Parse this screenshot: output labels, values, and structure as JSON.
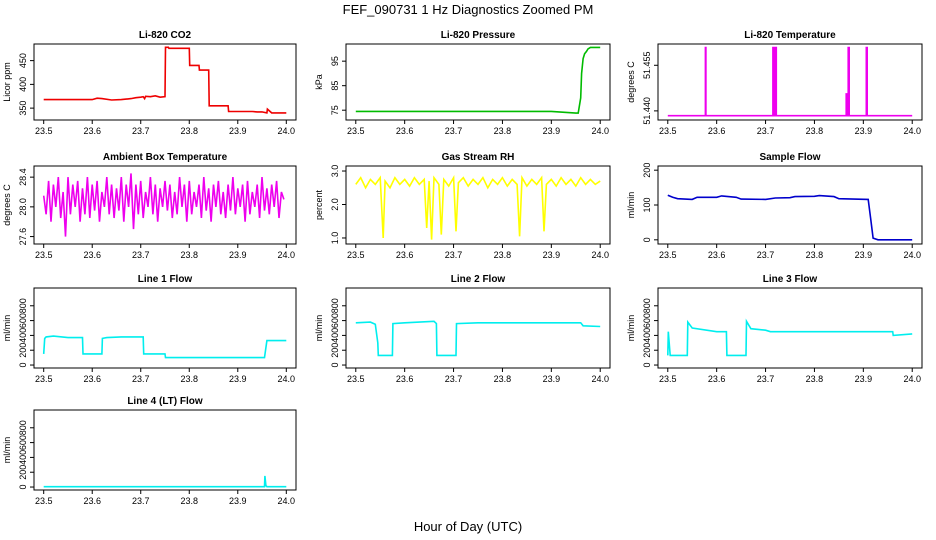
{
  "figure": {
    "title": "FEF_090731  1 Hz Diagnostics Zoomed PM",
    "xlabel": "Hour of Day (UTC)"
  },
  "chart_data": [
    {
      "id": "co2",
      "type": "line",
      "title": "Li-820 CO2",
      "ylabel": "Licor ppm",
      "color": "#ee0000",
      "xlim": [
        23.48,
        24.02
      ],
      "ylim": [
        325,
        485
      ],
      "xticks": [
        "23.5",
        "23.6",
        "23.7",
        "23.8",
        "23.9",
        "24.0"
      ],
      "yticks": [
        "350",
        "400",
        "450"
      ],
      "x": [
        23.5,
        23.55,
        23.6,
        23.61,
        23.62,
        23.64,
        23.66,
        23.67,
        23.68,
        23.69,
        23.7,
        23.705,
        23.708,
        23.71,
        23.72,
        23.73,
        23.74,
        23.75,
        23.751,
        23.757,
        23.758,
        23.8,
        23.801,
        23.82,
        23.821,
        23.84,
        23.841,
        23.88,
        23.881,
        23.93,
        23.94,
        23.95,
        23.96,
        23.961,
        23.97,
        24.0
      ],
      "y": [
        368,
        368,
        368,
        371,
        370,
        367,
        368,
        369,
        370,
        372,
        373,
        374,
        370,
        375,
        374,
        376,
        373,
        374,
        478,
        478,
        476,
        476,
        440,
        440,
        430,
        430,
        355,
        355,
        343,
        343,
        342,
        342,
        340,
        348,
        340,
        340
      ]
    },
    {
      "id": "pressure",
      "type": "line",
      "title": "Li-820 Pressure",
      "ylabel": "kPa",
      "color": "#00bb00",
      "xlim": [
        23.48,
        24.02
      ],
      "ylim": [
        71,
        102
      ],
      "xticks": [
        "23.5",
        "23.6",
        "23.7",
        "23.8",
        "23.9",
        "24.0"
      ],
      "yticks": [
        "75",
        "85",
        "95"
      ],
      "x": [
        23.5,
        23.9,
        23.95,
        23.955,
        23.96,
        23.962,
        23.965,
        23.968,
        23.972,
        23.975,
        23.98,
        24.0
      ],
      "y": [
        74.5,
        74.5,
        73.8,
        73.8,
        80,
        90,
        96,
        98,
        99,
        100,
        100.6,
        100.6
      ]
    },
    {
      "id": "temperature",
      "type": "line",
      "title": "Li-820 Temperature",
      "ylabel": "degrees C",
      "color": "#ee00ee",
      "xlim": [
        23.48,
        24.02
      ],
      "ylim": [
        51.437,
        51.462
      ],
      "xticks": [
        "23.5",
        "23.6",
        "23.7",
        "23.8",
        "23.9",
        "24.0"
      ],
      "yticks": [
        "51.440",
        "51.455"
      ],
      "x": [
        23.5,
        23.577,
        23.577,
        23.578,
        23.578,
        23.715,
        23.715,
        23.717,
        23.717,
        23.72,
        23.72,
        23.722,
        23.722,
        23.865,
        23.865,
        23.867,
        23.867,
        23.869,
        23.869,
        23.871,
        23.871,
        23.906,
        23.906,
        23.908,
        23.908,
        24.0
      ],
      "y": [
        51.4384,
        51.4384,
        51.4608,
        51.4608,
        51.4384,
        51.4384,
        51.4608,
        51.4608,
        51.4384,
        51.4384,
        51.4608,
        51.4608,
        51.4384,
        51.4384,
        51.4456,
        51.4456,
        51.4384,
        51.4384,
        51.4608,
        51.4608,
        51.4384,
        51.4384,
        51.4608,
        51.4608,
        51.4384,
        51.4384
      ]
    },
    {
      "id": "ambient",
      "type": "line",
      "title": "Ambient Box Temperature",
      "ylabel": "degrees C",
      "color": "#ee00ee",
      "xlim": [
        23.48,
        24.02
      ],
      "ylim": [
        27.5,
        28.55
      ],
      "xticks": [
        "23.5",
        "23.6",
        "23.7",
        "23.8",
        "23.9",
        "24.0"
      ],
      "yticks": [
        "27.6",
        "28.0",
        "28.4"
      ],
      "x": [
        23.5,
        23.505,
        23.51,
        23.515,
        23.52,
        23.525,
        23.53,
        23.535,
        23.54,
        23.545,
        23.55,
        23.555,
        23.56,
        23.565,
        23.57,
        23.575,
        23.58,
        23.585,
        23.59,
        23.595,
        23.6,
        23.605,
        23.61,
        23.615,
        23.62,
        23.625,
        23.63,
        23.635,
        23.64,
        23.645,
        23.65,
        23.655,
        23.66,
        23.665,
        23.67,
        23.675,
        23.68,
        23.685,
        23.69,
        23.695,
        23.7,
        23.705,
        23.71,
        23.715,
        23.72,
        23.725,
        23.73,
        23.735,
        23.74,
        23.745,
        23.75,
        23.755,
        23.76,
        23.765,
        23.77,
        23.775,
        23.78,
        23.785,
        23.79,
        23.795,
        23.8,
        23.805,
        23.81,
        23.815,
        23.82,
        23.825,
        23.83,
        23.835,
        23.84,
        23.845,
        23.85,
        23.855,
        23.86,
        23.865,
        23.87,
        23.875,
        23.88,
        23.885,
        23.89,
        23.895,
        23.9,
        23.905,
        23.91,
        23.915,
        23.92,
        23.925,
        23.93,
        23.935,
        23.94,
        23.945,
        23.95,
        23.955,
        23.96,
        23.965,
        23.97,
        23.975,
        23.98,
        23.985,
        23.99,
        23.995
      ],
      "y": [
        28.15,
        27.9,
        28.35,
        27.8,
        28.3,
        28.0,
        28.4,
        27.85,
        28.2,
        27.6,
        28.4,
        27.9,
        28.3,
        28.0,
        28.35,
        27.8,
        28.25,
        27.9,
        28.4,
        27.85,
        28.3,
        27.95,
        28.35,
        27.8,
        28.2,
        28.0,
        28.4,
        27.9,
        28.3,
        27.85,
        28.25,
        27.95,
        28.4,
        27.8,
        28.3,
        28.0,
        28.45,
        27.7,
        28.3,
        27.9,
        28.35,
        27.85,
        28.2,
        28.0,
        28.4,
        27.9,
        28.3,
        27.8,
        28.25,
        28.0,
        28.35,
        27.95,
        28.3,
        27.85,
        28.2,
        27.9,
        28.4,
        28.0,
        28.3,
        27.8,
        28.35,
        27.9,
        28.2,
        28.0,
        28.3,
        27.85,
        28.4,
        27.95,
        28.25,
        27.8,
        28.3,
        28.0,
        28.35,
        27.9,
        28.2,
        27.85,
        28.3,
        27.95,
        28.4,
        27.9,
        28.25,
        28.0,
        28.3,
        27.8,
        28.35,
        27.9,
        28.2,
        28.0,
        28.3,
        27.85,
        28.4,
        27.95,
        28.25,
        27.9,
        28.3,
        28.0,
        28.35,
        27.85,
        28.2,
        28.1
      ]
    },
    {
      "id": "rh",
      "type": "line",
      "title": "Gas Stream RH",
      "ylabel": "percent",
      "color": "#ffff00",
      "xlim": [
        23.48,
        24.02
      ],
      "ylim": [
        0.82,
        3.15
      ],
      "xticks": [
        "23.5",
        "23.6",
        "23.7",
        "23.8",
        "23.9",
        "24.0"
      ],
      "yticks": [
        "1.0",
        "2.0",
        "3.0"
      ],
      "x": [
        23.5,
        23.51,
        23.52,
        23.53,
        23.54,
        23.55,
        23.556,
        23.56,
        23.57,
        23.58,
        23.59,
        23.6,
        23.61,
        23.62,
        23.63,
        23.64,
        23.645,
        23.65,
        23.655,
        23.66,
        23.67,
        23.675,
        23.68,
        23.69,
        23.7,
        23.705,
        23.71,
        23.72,
        23.73,
        23.74,
        23.75,
        23.76,
        23.77,
        23.78,
        23.79,
        23.8,
        23.81,
        23.82,
        23.83,
        23.835,
        23.84,
        23.85,
        23.86,
        23.87,
        23.88,
        23.885,
        23.89,
        23.9,
        23.91,
        23.92,
        23.93,
        23.94,
        23.95,
        23.96,
        23.97,
        23.98,
        23.99,
        24.0
      ],
      "y": [
        2.6,
        2.8,
        2.5,
        2.75,
        2.6,
        2.8,
        1.0,
        2.7,
        2.5,
        2.8,
        2.6,
        2.75,
        2.55,
        2.8,
        2.6,
        2.75,
        1.3,
        2.7,
        0.95,
        2.8,
        2.6,
        1.1,
        2.75,
        2.55,
        2.8,
        1.2,
        2.65,
        2.8,
        2.55,
        2.75,
        2.6,
        2.8,
        2.5,
        2.75,
        2.6,
        2.8,
        2.55,
        2.75,
        2.6,
        1.05,
        2.8,
        2.55,
        2.75,
        2.6,
        2.8,
        1.2,
        2.6,
        2.75,
        2.55,
        2.8,
        2.6,
        2.75,
        2.55,
        2.8,
        2.6,
        2.75,
        2.6,
        2.7
      ]
    },
    {
      "id": "sample",
      "type": "line",
      "title": "Sample Flow",
      "ylabel": "ml/min",
      "color": "#0000cc",
      "xlim": [
        23.48,
        24.02
      ],
      "ylim": [
        -12,
        212
      ],
      "xticks": [
        "23.5",
        "23.6",
        "23.7",
        "23.8",
        "23.9",
        "24.0"
      ],
      "yticks": [
        "0",
        "100",
        "200"
      ],
      "x": [
        23.5,
        23.51,
        23.52,
        23.55,
        23.56,
        23.6,
        23.61,
        23.64,
        23.65,
        23.7,
        23.72,
        23.75,
        23.76,
        23.8,
        23.81,
        23.84,
        23.85,
        23.91,
        23.915,
        23.92,
        23.93,
        24.0
      ],
      "y": [
        128,
        122,
        118,
        116,
        122,
        122,
        126,
        122,
        117,
        116,
        120,
        121,
        124,
        125,
        127,
        124,
        118,
        116,
        60,
        5,
        0,
        0
      ]
    },
    {
      "id": "line1",
      "type": "line",
      "title": "Line 1 Flow",
      "ylabel": "ml/min",
      "color": "#00eeee",
      "xlim": [
        23.48,
        24.02
      ],
      "ylim": [
        -40,
        1040
      ],
      "xticks": [
        "23.5",
        "23.6",
        "23.7",
        "23.8",
        "23.9",
        "24.0"
      ],
      "yticks": [
        "0",
        "200",
        "400",
        "600",
        "800"
      ],
      "x": [
        23.5,
        23.502,
        23.505,
        23.52,
        23.55,
        23.58,
        23.581,
        23.62,
        23.621,
        23.63,
        23.66,
        23.705,
        23.706,
        23.75,
        23.751,
        23.955,
        23.96,
        24.0
      ],
      "y": [
        150,
        360,
        380,
        390,
        370,
        370,
        150,
        150,
        360,
        370,
        380,
        380,
        150,
        150,
        100,
        100,
        330,
        330
      ]
    },
    {
      "id": "line2",
      "type": "line",
      "title": "Line 2 Flow",
      "ylabel": "ml/min",
      "color": "#00eeee",
      "xlim": [
        23.48,
        24.02
      ],
      "ylim": [
        -40,
        1040
      ],
      "xticks": [
        "23.5",
        "23.6",
        "23.7",
        "23.8",
        "23.9",
        "24.0"
      ],
      "yticks": [
        "0",
        "200",
        "400",
        "600",
        "800"
      ],
      "x": [
        23.5,
        23.53,
        23.54,
        23.545,
        23.546,
        23.575,
        23.576,
        23.6,
        23.63,
        23.66,
        23.665,
        23.666,
        23.705,
        23.706,
        23.75,
        23.85,
        23.96,
        23.965,
        24.0
      ],
      "y": [
        570,
        580,
        550,
        300,
        130,
        130,
        560,
        570,
        580,
        590,
        560,
        130,
        130,
        560,
        570,
        570,
        570,
        530,
        520
      ]
    },
    {
      "id": "line3",
      "type": "line",
      "title": "Line 3 Flow",
      "ylabel": "ml/min",
      "color": "#00eeee",
      "xlim": [
        23.48,
        24.02
      ],
      "ylim": [
        -40,
        1040
      ],
      "xticks": [
        "23.5",
        "23.6",
        "23.7",
        "23.8",
        "23.9",
        "24.0"
      ],
      "yticks": [
        "0",
        "200",
        "400",
        "600",
        "800"
      ],
      "x": [
        23.5,
        23.501,
        23.505,
        23.506,
        23.54,
        23.541,
        23.55,
        23.6,
        23.62,
        23.621,
        23.66,
        23.661,
        23.67,
        23.7,
        23.71,
        23.8,
        23.9,
        23.96,
        23.961,
        24.0
      ],
      "y": [
        130,
        450,
        130,
        130,
        130,
        580,
        500,
        450,
        450,
        130,
        130,
        590,
        490,
        470,
        450,
        450,
        450,
        450,
        400,
        420
      ]
    },
    {
      "id": "line4",
      "type": "line",
      "title": "Line 4 (LT) Flow",
      "ylabel": "ml/min",
      "color": "#00eeee",
      "xlim": [
        23.48,
        24.02
      ],
      "ylim": [
        -40,
        1040
      ],
      "xticks": [
        "23.5",
        "23.6",
        "23.7",
        "23.8",
        "23.9",
        "24.0"
      ],
      "yticks": [
        "0",
        "200",
        "400",
        "600",
        "800"
      ],
      "x": [
        23.5,
        23.6,
        23.7,
        23.8,
        23.9,
        23.955,
        23.956,
        23.958,
        23.96,
        24.0
      ],
      "y": [
        5,
        5,
        5,
        5,
        5,
        5,
        150,
        20,
        5,
        5
      ]
    }
  ]
}
